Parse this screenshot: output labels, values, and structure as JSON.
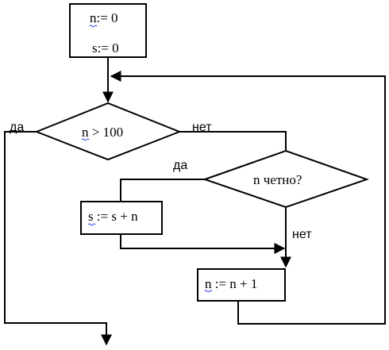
{
  "blocks": {
    "init_n": "n:= 0",
    "init_s": "s:= 0",
    "cond_main": "n > 100",
    "cond_even": "n четно?",
    "add_s": "s := s + n",
    "inc_n": "n := n + 1"
  },
  "labels": {
    "yes_main": "да",
    "no_main": "нет",
    "yes_even": "да",
    "no_even": "нет"
  }
}
